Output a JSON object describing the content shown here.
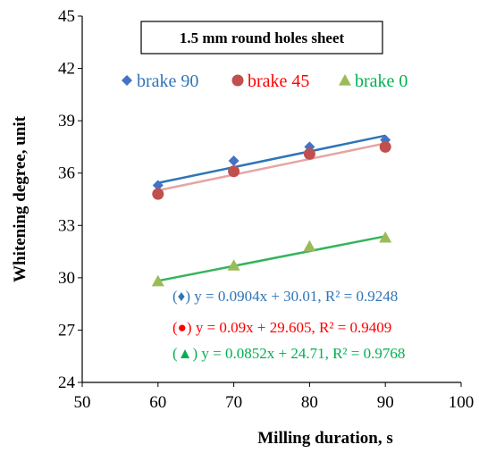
{
  "chart_data": {
    "type": "scatter",
    "title": "1.5 mm round holes sheet",
    "xlabel": "Milling duration, s",
    "ylabel": "Whitening degree, unit",
    "xlim": [
      50,
      100
    ],
    "ylim": [
      24,
      45
    ],
    "xticks": [
      "50",
      "60",
      "70",
      "80",
      "90",
      "100"
    ],
    "yticks": [
      "24",
      "27",
      "30",
      "33",
      "36",
      "39",
      "42",
      "45"
    ],
    "grid": false,
    "legend_position": "top",
    "series": [
      {
        "name": "brake 90",
        "marker": "diamond",
        "color": "#4472c4",
        "trendline_color": "#2e75b6",
        "x": [
          60,
          70,
          80,
          90
        ],
        "y": [
          35.3,
          36.7,
          37.5,
          37.9
        ],
        "trendline": {
          "slope": 0.0904,
          "intercept": 30.01
        },
        "equation": "(♦) y = 0.0904x + 30.01, R² = 0.9248",
        "equation_color": "#2e75b6"
      },
      {
        "name": "brake 45",
        "marker": "circle",
        "color": "#c0504d",
        "trendline_color": "#e6a5a3",
        "x": [
          60,
          70,
          80,
          90
        ],
        "y": [
          34.8,
          36.1,
          37.1,
          37.5
        ],
        "trendline": {
          "slope": 0.09,
          "intercept": 29.605
        },
        "equation": "(●) y = 0.09x + 29.605, R² = 0.9409",
        "equation_color": "#ff0000"
      },
      {
        "name": "brake 0",
        "marker": "triangle",
        "color": "#9bbb59",
        "trendline_color": "#33b55c",
        "x": [
          60,
          70,
          80,
          90
        ],
        "y": [
          29.8,
          30.7,
          31.8,
          32.3
        ],
        "trendline": {
          "slope": 0.0852,
          "intercept": 24.71
        },
        "equation": "(▲) y = 0.0852x + 24.71, R² = 0.9768",
        "equation_color": "#00b050"
      }
    ]
  }
}
